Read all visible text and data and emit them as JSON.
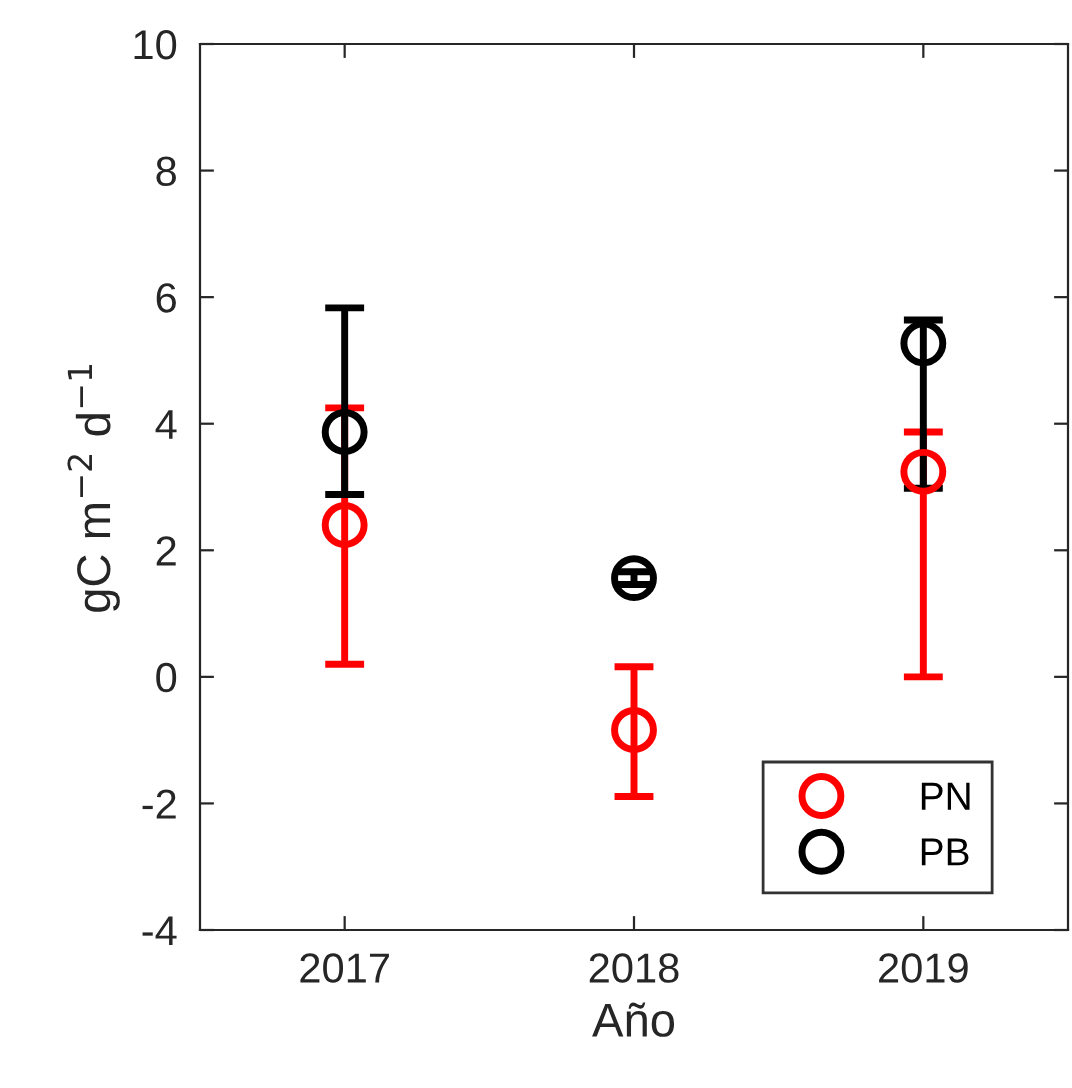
{
  "chart_data": {
    "type": "scatter",
    "xlabel": "Año",
    "ylabel": "gC m$^{−2}$ d$^{−1}$",
    "x": [
      2017,
      2018,
      2019
    ],
    "xlim": [
      2016.5,
      2019.5
    ],
    "xticks": [
      2017,
      2018,
      2019
    ],
    "ylim": [
      -4,
      10
    ],
    "yticks": [
      -4,
      -2,
      0,
      2,
      4,
      6,
      8,
      10
    ],
    "marker": "circle",
    "legend": "bottom right",
    "grid": false,
    "series": [
      {
        "name": "PN",
        "color": "#ff0000",
        "values": [
          2.4,
          -0.84,
          3.24
        ],
        "errors": [
          [
            0.2,
            4.25
          ],
          [
            -1.89,
            0.16
          ],
          [
            0.0,
            3.87
          ]
        ]
      },
      {
        "name": "PB",
        "color": "#000000",
        "values": [
          3.87,
          1.56,
          5.27
        ],
        "errors": [
          [
            2.88,
            5.83
          ],
          [
            1.46,
            1.66
          ],
          [
            2.98,
            5.64
          ]
        ]
      }
    ]
  }
}
